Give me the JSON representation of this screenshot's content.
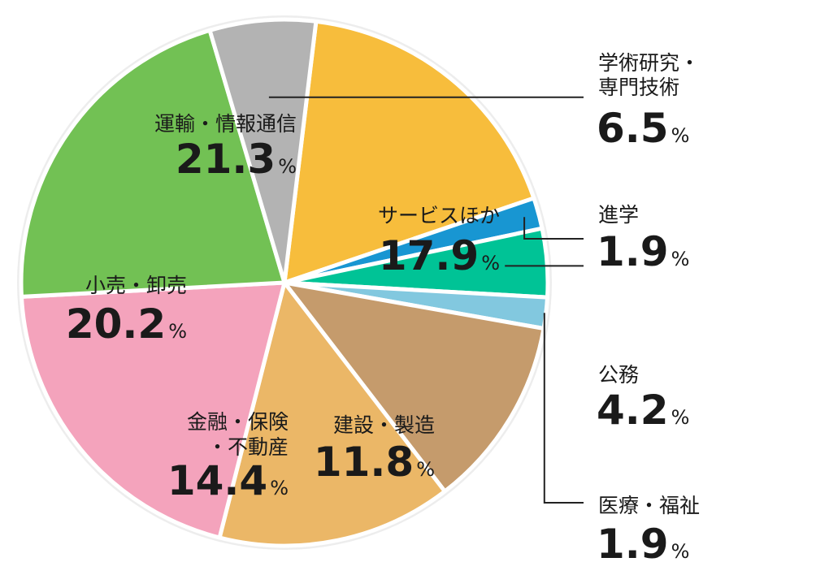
{
  "chart_data": {
    "type": "pie",
    "title": "",
    "unit": "%",
    "start_angle_deg": 6.9,
    "direction": "clockwise",
    "slices": [
      {
        "label": "サービスほか",
        "value": 17.9,
        "value_text": "17.9",
        "color": "#f7bd3c"
      },
      {
        "label": "進学",
        "value": 1.9,
        "value_text": "1.9",
        "color": "#1896d2"
      },
      {
        "label": "公務",
        "value": 4.2,
        "value_text": "4.2",
        "color": "#00c396"
      },
      {
        "label": "医療・福祉",
        "value": 1.9,
        "value_text": "1.9",
        "color": "#82c8df"
      },
      {
        "label": "建設・製造",
        "value": 11.8,
        "value_text": "11.8",
        "color": "#c59b6c"
      },
      {
        "label": "金融・保険・不動産",
        "label_lines": [
          "金融・保険",
          "・不動産"
        ],
        "value": 14.4,
        "value_text": "14.4",
        "color": "#ebb767"
      },
      {
        "label": "小売・卸売",
        "value": 20.2,
        "value_text": "20.2",
        "color": "#f4a3bc"
      },
      {
        "label": "運輸・情報通信",
        "value": 21.3,
        "value_text": "21.3",
        "color": "#72c154"
      },
      {
        "label": "学術研究・専門技術",
        "label_lines": [
          "学術研究・",
          "専門技術"
        ],
        "value": 6.5,
        "value_text": "6.5",
        "color": "#b3b3b3"
      }
    ]
  }
}
